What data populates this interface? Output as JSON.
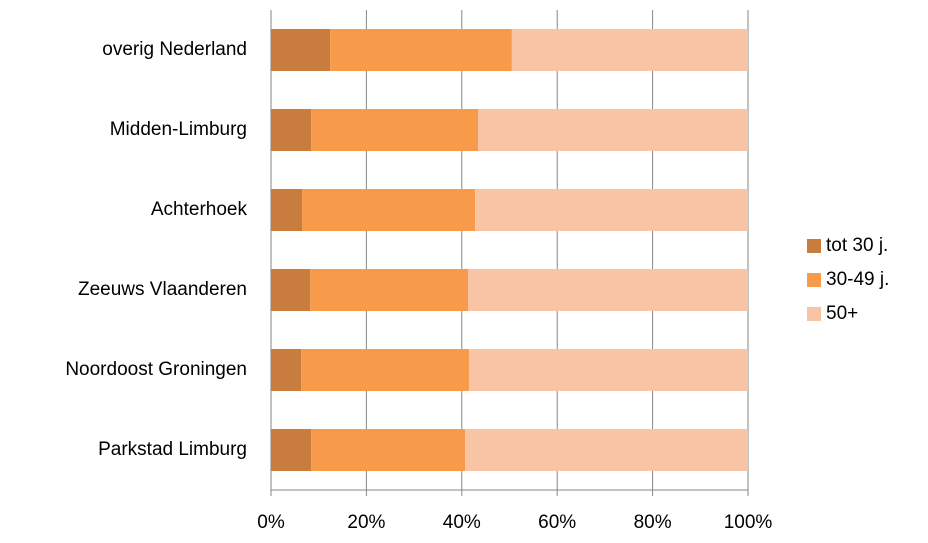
{
  "chart_data": {
    "type": "stacked-bar-horizontal",
    "categories": [
      "overig Nederland",
      "Midden-Limburg",
      "Achterhoek",
      "Zeeuws Vlaanderen",
      "Noordoost Groningen",
      "Parkstad Limburg"
    ],
    "series": [
      {
        "name": "tot 30 j.",
        "color": "#c87d3f",
        "values": [
          12.4,
          8.4,
          6.5,
          8.2,
          6.3,
          8.4
        ]
      },
      {
        "name": "30-49 j.",
        "color": "#f79b4b",
        "values": [
          38.1,
          35.0,
          36.3,
          33.1,
          35.2,
          32.3
        ]
      },
      {
        "name": "50+",
        "color": "#f9c3a6",
        "values": [
          49.5,
          56.6,
          57.2,
          58.7,
          58.5,
          59.3
        ]
      }
    ],
    "xlim": [
      0,
      100
    ],
    "xticks": [
      {
        "value": 0,
        "label": "0%"
      },
      {
        "value": 20,
        "label": "20%"
      },
      {
        "value": 40,
        "label": "40%"
      },
      {
        "value": 60,
        "label": "60%"
      },
      {
        "value": 80,
        "label": "80%"
      },
      {
        "value": 100,
        "label": "100%"
      }
    ],
    "grid": true,
    "legend": "right"
  }
}
